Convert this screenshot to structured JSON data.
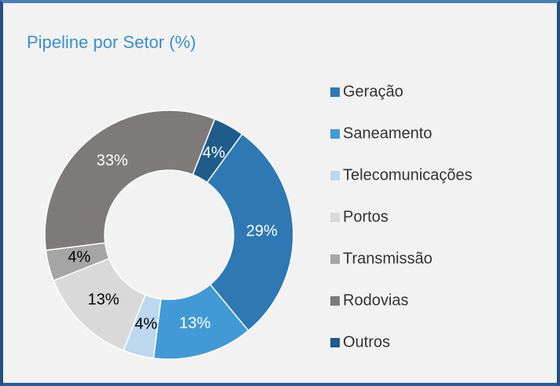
{
  "chart_data": {
    "type": "donut",
    "title": "Pipeline por Setor (%)",
    "categories": [
      "Geração",
      "Saneamento",
      "Telecomunicações",
      "Portos",
      "Transmissão",
      "Rodovias",
      "Outros"
    ],
    "values": [
      29,
      13,
      4,
      13,
      4,
      33,
      4
    ],
    "value_labels": [
      "29%",
      "13%",
      "4%",
      "13%",
      "4%",
      "33%",
      "4%"
    ],
    "colors": [
      "#2e78b4",
      "#419ad6",
      "#bdd7ee",
      "#d9d9d9",
      "#a5a5a5",
      "#7f7a7a",
      "#1f5c8a"
    ],
    "legend": "right"
  }
}
